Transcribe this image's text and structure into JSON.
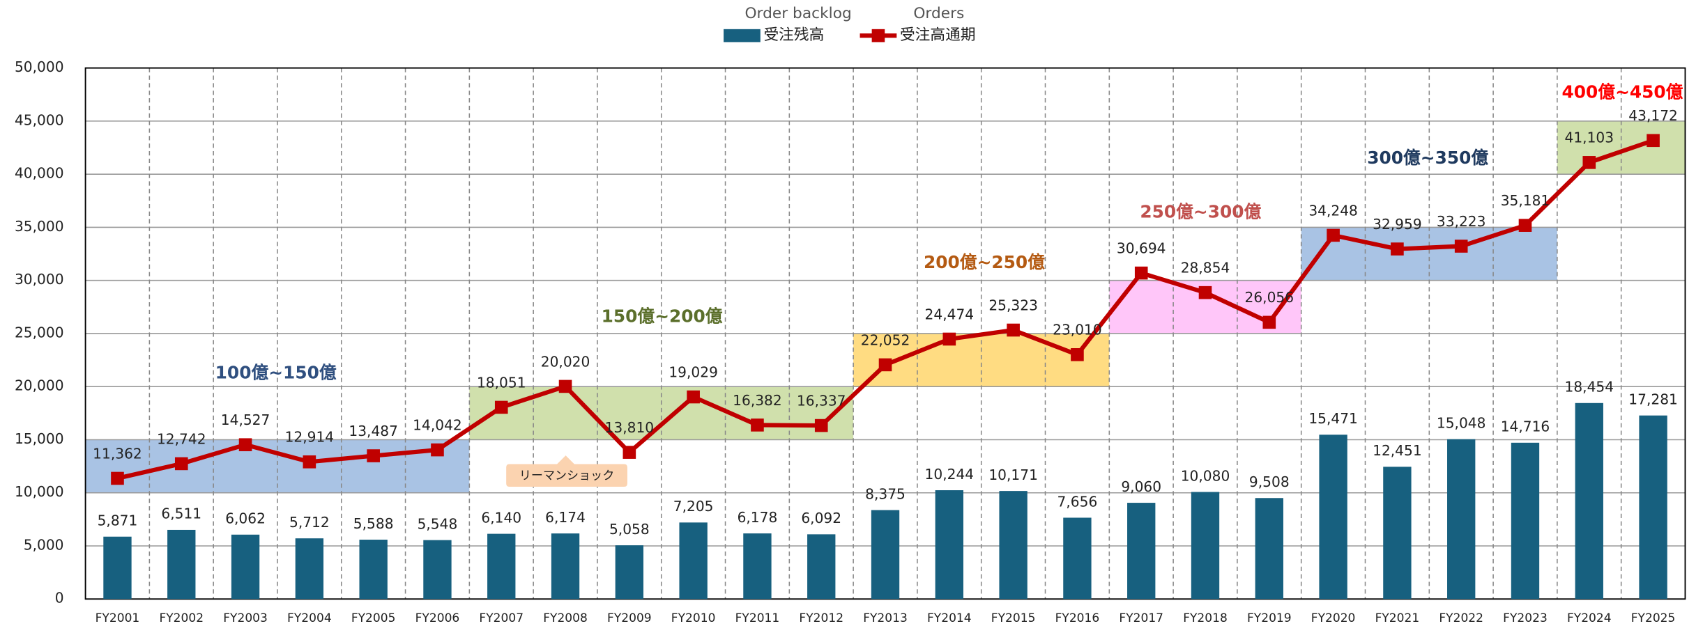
{
  "chart_data": {
    "type": "bar_line",
    "categories": [
      "FY2001",
      "FY2002",
      "FY2003",
      "FY2004",
      "FY2005",
      "FY2006",
      "FY2007",
      "FY2008",
      "FY2009",
      "FY2010",
      "FY2011",
      "FY2012",
      "FY2013",
      "FY2014",
      "FY2015",
      "FY2016",
      "FY2017",
      "FY2018",
      "FY2019",
      "FY2020",
      "FY2021",
      "FY2022",
      "FY2023",
      "FY2024",
      "FY2025"
    ],
    "series": [
      {
        "name": "受注残高",
        "name_en": "Order backlog",
        "type": "bar",
        "color": "#17607f",
        "values": [
          5871,
          6511,
          6062,
          5712,
          5588,
          5548,
          6140,
          6174,
          5058,
          7205,
          6178,
          6092,
          8375,
          10244,
          10171,
          7656,
          9060,
          10080,
          9508,
          15471,
          12451,
          15048,
          14716,
          18454,
          17281
        ],
        "value_labels": [
          "5,871",
          "6,511",
          "6,062",
          "5,712",
          "5,588",
          "5,548",
          "6,140",
          "6,174",
          "5,058",
          "7,205",
          "6,178",
          "6,092",
          "8,375",
          "10,244",
          "10,171",
          "7,656",
          "9,060",
          "10,080",
          "9,508",
          "15,471",
          "12,451",
          "15,048",
          "14,716",
          "18,454",
          "17,281"
        ]
      },
      {
        "name": "受注高通期",
        "name_en": "Orders",
        "type": "line",
        "color": "#c00000",
        "values": [
          11362,
          12742,
          14527,
          12914,
          13487,
          14042,
          18051,
          20020,
          13810,
          19029,
          16382,
          16337,
          22052,
          24474,
          25323,
          23010,
          30694,
          28854,
          26056,
          34248,
          32959,
          33223,
          35181,
          41103,
          43172
        ],
        "value_labels": [
          "11,362",
          "12,742",
          "14,527",
          "12,914",
          "13,487",
          "14,042",
          "18,051",
          "20,020",
          "13,810",
          "19,029",
          "16,382",
          "16,337",
          "22,052",
          "24,474",
          "25,323",
          "23,010",
          "30,694",
          "28,854",
          "26,056",
          "34,248",
          "32,959",
          "33,223",
          "35,181",
          "41,103",
          "43,172"
        ]
      }
    ],
    "bands": [
      {
        "label": "100億~150億",
        "from": "FY2001",
        "to": "FY2006",
        "range": [
          10000,
          15000
        ],
        "color": "#a9c3e4",
        "label_color": "#2f4f7f"
      },
      {
        "label": "150億~200億",
        "from": "FY2007",
        "to": "FY2012",
        "range": [
          15000,
          20000
        ],
        "color": "#d0e0ac",
        "label_color": "#5b6f2b"
      },
      {
        "label": "200億~250億",
        "from": "FY2013",
        "to": "FY2016",
        "range": [
          20000,
          25000
        ],
        "color": "#ffdc82",
        "label_color": "#b45a12"
      },
      {
        "label": "250億~300億",
        "from": "FY2017",
        "to": "FY2019",
        "range": [
          25000,
          30000
        ],
        "color": "#ffc6f9",
        "label_color": "#c0504d"
      },
      {
        "label": "300億~350億",
        "from": "FY2020",
        "to": "FY2023",
        "range": [
          30000,
          35000
        ],
        "color": "#a9c3e4",
        "label_color": "#1f3a5f"
      },
      {
        "label": "400億~450億",
        "from": "FY2024",
        "to": "FY2025",
        "range": [
          40000,
          45000
        ],
        "color": "#d0e0ac",
        "label_color": "#ff0000"
      }
    ],
    "annotation": "リーマンショック",
    "ylim": [
      0,
      50000
    ],
    "yticks": [
      0,
      {
        "value": 5000,
        "label": "5,000"
      },
      {
        "value": 10000,
        "label": "10,000"
      },
      {
        "value": 15000,
        "label": "15,000"
      },
      {
        "value": 20000,
        "label": "20,000"
      },
      {
        "value": 25000,
        "label": "25,000"
      },
      {
        "value": 30000,
        "label": "30,000"
      },
      {
        "value": 35000,
        "label": "35,000"
      },
      {
        "value": 40000,
        "label": "40,000"
      },
      {
        "value": 45000,
        "label": "45,000"
      },
      {
        "value": 50000,
        "label": "50,000"
      }
    ],
    "grid": true
  }
}
